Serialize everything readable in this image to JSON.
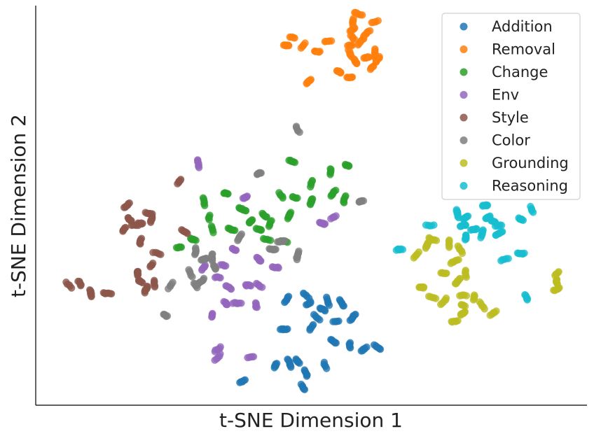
{
  "chart_data": {
    "type": "scatter",
    "xlabel": "t-SNE Dimension 1",
    "ylabel": "t-SNE Dimension 2",
    "xlim": [
      0,
      100
    ],
    "ylim": [
      0,
      100
    ],
    "ticks_visible": false,
    "grid": false,
    "legend_position": "top-right",
    "series": [
      {
        "name": "Addition",
        "color": "#1f77b4",
        "clusters": [
          [
            45.5,
            26.5
          ],
          [
            49,
            27.5
          ],
          [
            53,
            26
          ],
          [
            55.5,
            25.5
          ],
          [
            51,
            22
          ],
          [
            50,
            19.5
          ],
          [
            45,
            19
          ],
          [
            54.5,
            21
          ],
          [
            57.5,
            22
          ],
          [
            54,
            16
          ],
          [
            57,
            15
          ],
          [
            52.5,
            10
          ],
          [
            47.5,
            11
          ],
          [
            49,
            8
          ],
          [
            46,
            10.5
          ],
          [
            43.5,
            10
          ],
          [
            37.5,
            6
          ],
          [
            48.5,
            4.5
          ],
          [
            59.5,
            14
          ],
          [
            62,
            14.5
          ],
          [
            49.5,
            25.5
          ],
          [
            52,
            24
          ]
        ]
      },
      {
        "name": "Removal",
        "color": "#ff7f0e",
        "clusters": [
          [
            57.5,
            94
          ],
          [
            57.5,
            92
          ],
          [
            57,
            90
          ],
          [
            57,
            88
          ],
          [
            58,
            86
          ],
          [
            57.5,
            96
          ],
          [
            53,
            91
          ],
          [
            51,
            88.5
          ],
          [
            48.5,
            90
          ],
          [
            45.5,
            90
          ],
          [
            46.5,
            92
          ],
          [
            49.5,
            81
          ],
          [
            55,
            83.5
          ],
          [
            57,
            82
          ],
          [
            60,
            87
          ],
          [
            61.5,
            88
          ],
          [
            62,
            86.5
          ],
          [
            61,
            84.5
          ],
          [
            58.5,
            98
          ],
          [
            60,
            93
          ],
          [
            61.5,
            96
          ],
          [
            59,
            91
          ]
        ]
      },
      {
        "name": "Change",
        "color": "#2ca02c",
        "clusters": [
          [
            46.5,
            61
          ],
          [
            53.5,
            58.5
          ],
          [
            56.5,
            60
          ],
          [
            50,
            55.5
          ],
          [
            54,
            53
          ],
          [
            56,
            51.5
          ],
          [
            47,
            52
          ],
          [
            44.5,
            52.5
          ],
          [
            41.5,
            47.5
          ],
          [
            37.5,
            49
          ],
          [
            34.5,
            53
          ],
          [
            31.5,
            47
          ],
          [
            30.5,
            51
          ],
          [
            28.5,
            41.5
          ],
          [
            32,
            44
          ],
          [
            35.5,
            44
          ],
          [
            39,
            46
          ],
          [
            42.5,
            45.5
          ],
          [
            46,
            47.5
          ],
          [
            50,
            51
          ],
          [
            26,
            39.5
          ],
          [
            42,
            41.5
          ],
          [
            45,
            41
          ],
          [
            40.5,
            44
          ]
        ]
      },
      {
        "name": "Env",
        "color": "#9467bd",
        "clusters": [
          [
            29.5,
            60.5
          ],
          [
            38,
            52
          ],
          [
            36,
            39
          ],
          [
            40.5,
            36.5
          ],
          [
            34,
            35
          ],
          [
            33,
            32
          ],
          [
            35,
            29.5
          ],
          [
            38.5,
            30
          ],
          [
            40.5,
            30
          ],
          [
            34.5,
            25.5
          ],
          [
            36.5,
            25.5
          ],
          [
            32,
            22.5
          ],
          [
            40,
            25
          ],
          [
            33,
            14
          ],
          [
            33,
            12
          ],
          [
            39,
            12
          ],
          [
            52,
            45.5
          ],
          [
            54,
            47
          ],
          [
            30.5,
            34.5
          ],
          [
            43.5,
            34.5
          ]
        ]
      },
      {
        "name": "Style",
        "color": "#8c564b",
        "clusters": [
          [
            16.5,
            50
          ],
          [
            17,
            46.5
          ],
          [
            19,
            45.5
          ],
          [
            20.5,
            48
          ],
          [
            21,
            46.5
          ],
          [
            16,
            44
          ],
          [
            18,
            45
          ],
          [
            19,
            41
          ],
          [
            22,
            38
          ],
          [
            21,
            35
          ],
          [
            19,
            31
          ],
          [
            18.5,
            33
          ],
          [
            20,
            29
          ],
          [
            21.5,
            30.5
          ],
          [
            8,
            30.5
          ],
          [
            6,
            30
          ],
          [
            10,
            28
          ],
          [
            13,
            28
          ],
          [
            27,
            43.5
          ],
          [
            26,
            56
          ]
        ]
      },
      {
        "name": "Color",
        "color": "#7f7f7f",
        "clusters": [
          [
            47.5,
            69
          ],
          [
            40.5,
            58
          ],
          [
            59,
            51
          ],
          [
            37,
            42
          ],
          [
            43,
            39
          ],
          [
            44.5,
            41
          ],
          [
            47.5,
            37.5
          ],
          [
            29,
            38.5
          ],
          [
            30.5,
            36.5
          ],
          [
            32,
            37
          ],
          [
            32.5,
            34.5
          ],
          [
            28,
            33
          ],
          [
            29,
            30
          ],
          [
            24.5,
            30
          ],
          [
            23.5,
            22.5
          ],
          [
            30,
            31
          ]
        ]
      },
      {
        "name": "Grounding",
        "color": "#bcbd22",
        "clusters": [
          [
            69,
            37.5
          ],
          [
            71,
            40
          ],
          [
            72,
            41.5
          ],
          [
            75,
            40.5
          ],
          [
            77,
            39
          ],
          [
            76,
            36
          ],
          [
            74,
            33
          ],
          [
            78,
            33
          ],
          [
            76.5,
            31
          ],
          [
            77.5,
            27.5
          ],
          [
            79.5,
            27
          ],
          [
            77.5,
            25
          ],
          [
            77.5,
            23
          ],
          [
            76,
            21
          ],
          [
            74,
            26
          ],
          [
            81,
            25
          ],
          [
            83,
            23
          ],
          [
            70,
            29.5
          ],
          [
            72,
            27
          ],
          [
            94.5,
            31
          ],
          [
            94.5,
            33
          ],
          [
            94.5,
            29
          ]
        ]
      },
      {
        "name": "Reasoning",
        "color": "#17becf",
        "clusters": [
          [
            66,
            39
          ],
          [
            71.5,
            45
          ],
          [
            76.5,
            48
          ],
          [
            78,
            47
          ],
          [
            78,
            42
          ],
          [
            82,
            47
          ],
          [
            84,
            45
          ],
          [
            84,
            43
          ],
          [
            81,
            43
          ],
          [
            88,
            46.5
          ],
          [
            90,
            49
          ],
          [
            85,
            36.5
          ],
          [
            88,
            38
          ],
          [
            89,
            27
          ],
          [
            81.5,
            50
          ],
          [
            77.5,
            45
          ],
          [
            83,
            46
          ],
          [
            79.5,
            44
          ]
        ]
      }
    ]
  }
}
